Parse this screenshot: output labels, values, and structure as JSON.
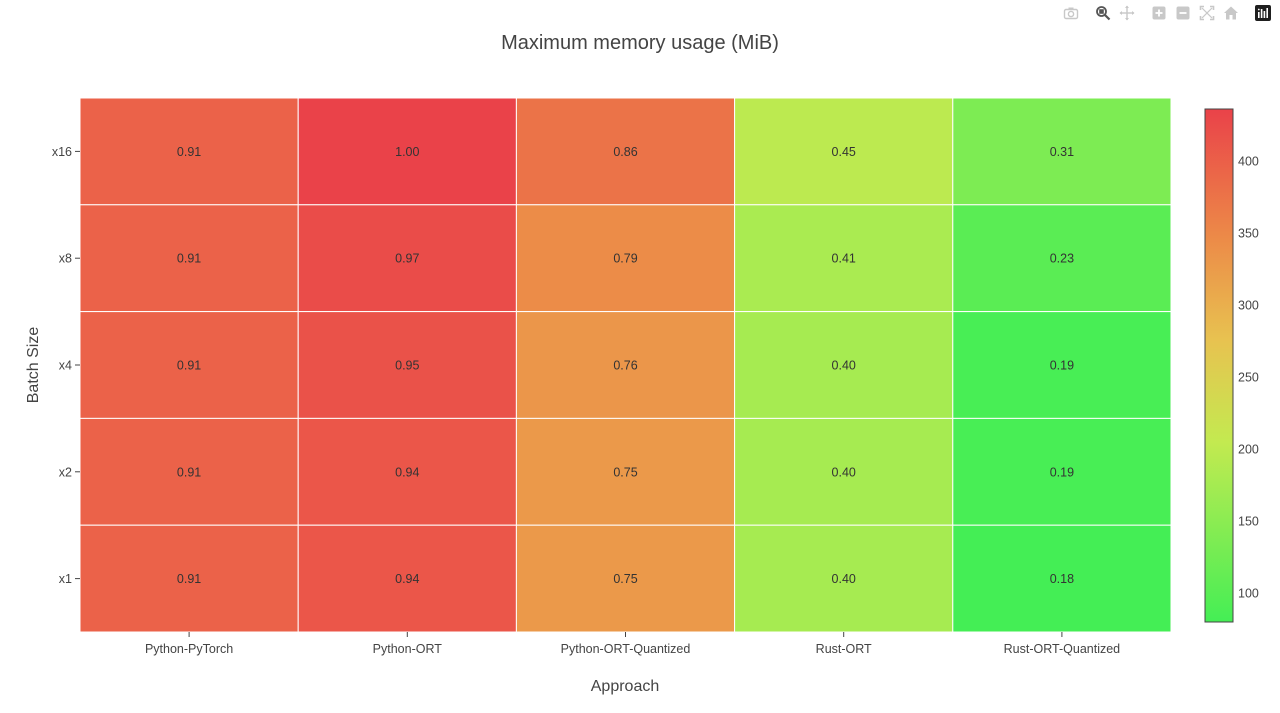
{
  "chart_data": {
    "type": "heatmap",
    "title": "Maximum memory usage (MiB)",
    "xlabel": "Approach",
    "ylabel": "Batch Size",
    "x": [
      "Python-PyTorch",
      "Python-ORT",
      "Python-ORT-Quantized",
      "Rust-ORT",
      "Rust-ORT-Quantized"
    ],
    "y": [
      "x16",
      "x8",
      "x4",
      "x2",
      "x1"
    ],
    "z": [
      [
        397,
        436,
        376,
        198,
        136
      ],
      [
        397,
        424,
        345,
        180,
        102
      ],
      [
        397,
        416,
        332,
        176,
        84
      ],
      [
        397,
        411,
        328,
        176,
        84
      ],
      [
        397,
        411,
        328,
        176,
        80
      ]
    ],
    "text": [
      [
        "0.91",
        "1.00",
        "0.86",
        "0.45",
        "0.31"
      ],
      [
        "0.91",
        "0.97",
        "0.79",
        "0.41",
        "0.23"
      ],
      [
        "0.91",
        "0.95",
        "0.76",
        "0.40",
        "0.19"
      ],
      [
        "0.91",
        "0.94",
        "0.75",
        "0.40",
        "0.19"
      ],
      [
        "0.91",
        "0.94",
        "0.75",
        "0.40",
        "0.18"
      ]
    ],
    "zmin": 80,
    "zmax": 436,
    "colorscale": [
      [
        0.0,
        "#44ee55"
      ],
      [
        0.35,
        "#c3ea50"
      ],
      [
        0.55,
        "#e8c250"
      ],
      [
        0.75,
        "#ec8a48"
      ],
      [
        1.0,
        "#ea4249"
      ]
    ],
    "colorbar": {
      "ticks": [
        100,
        150,
        200,
        250,
        300,
        350,
        400
      ],
      "tick_labels": [
        "100",
        "150",
        "200",
        "250",
        "300",
        "350",
        "400"
      ]
    }
  },
  "modebar": {
    "buttons": [
      "camera-icon",
      "zoom-icon",
      "pan-icon",
      "zoom-in-icon",
      "zoom-out-icon",
      "autoscale-icon",
      "reset-axes-icon",
      "plotly-logo-icon"
    ]
  }
}
